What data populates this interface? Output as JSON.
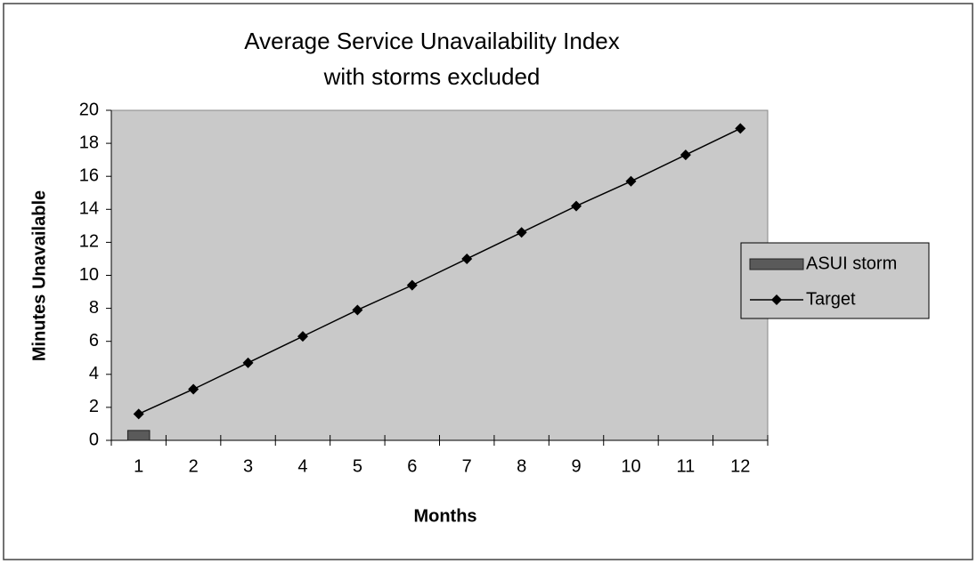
{
  "chart_data": {
    "type": "bar",
    "title": [
      "Average Service Unavailability Index",
      "with storms excluded"
    ],
    "x_label": "Months",
    "y_label": "Minutes Unavailable",
    "categories": [
      "1",
      "2",
      "3",
      "4",
      "5",
      "6",
      "7",
      "8",
      "9",
      "10",
      "11",
      "12"
    ],
    "series": [
      {
        "name": "ASUI storm",
        "kind": "bar",
        "color": "#5a5a5a",
        "values": [
          0.6,
          null,
          null,
          null,
          null,
          null,
          null,
          null,
          null,
          null,
          null,
          null
        ]
      },
      {
        "name": "Target",
        "kind": "line",
        "color": "#000000",
        "values": [
          1.6,
          3.1,
          4.7,
          6.3,
          7.9,
          9.4,
          11.0,
          12.6,
          14.2,
          15.7,
          17.3,
          18.9
        ]
      }
    ],
    "ylim": [
      0,
      20
    ],
    "yticks": [
      0,
      2,
      4,
      6,
      8,
      10,
      12,
      14,
      16,
      18,
      20
    ],
    "grid": false,
    "legend": "right"
  }
}
